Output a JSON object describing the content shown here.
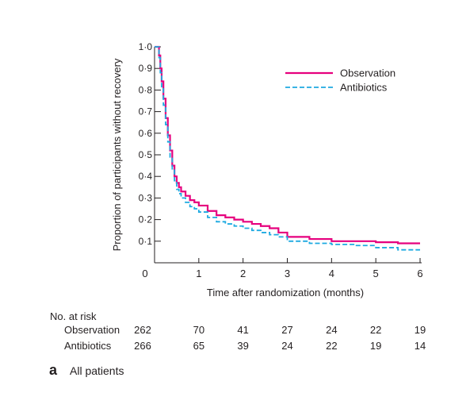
{
  "chart_data": {
    "type": "line",
    "step": true,
    "xlabel": "Time after randomization (months)",
    "ylabel": "Proportion of participants without recovery",
    "xlim": [
      0,
      6
    ],
    "ylim": [
      0,
      1.0
    ],
    "x_ticks": [
      "0",
      "1",
      "2",
      "3",
      "4",
      "5",
      "6"
    ],
    "y_ticks": [
      "0·1",
      "0·2",
      "0·3",
      "0·4",
      "0·5",
      "0·6",
      "0·7",
      "0·8",
      "0·9",
      "1·0"
    ],
    "grid": false,
    "legend_position": "top-right",
    "series": [
      {
        "name": "Observation",
        "color": "#e6007e",
        "dash": "solid",
        "points": [
          [
            0,
            1.0
          ],
          [
            0.08,
            1.0
          ],
          [
            0.1,
            0.96
          ],
          [
            0.13,
            0.9
          ],
          [
            0.16,
            0.84
          ],
          [
            0.2,
            0.76
          ],
          [
            0.25,
            0.67
          ],
          [
            0.3,
            0.59
          ],
          [
            0.35,
            0.52
          ],
          [
            0.4,
            0.45
          ],
          [
            0.45,
            0.4
          ],
          [
            0.5,
            0.37
          ],
          [
            0.55,
            0.35
          ],
          [
            0.6,
            0.33
          ],
          [
            0.7,
            0.31
          ],
          [
            0.8,
            0.29
          ],
          [
            0.9,
            0.28
          ],
          [
            1.0,
            0.265
          ],
          [
            1.2,
            0.24
          ],
          [
            1.4,
            0.22
          ],
          [
            1.6,
            0.21
          ],
          [
            1.8,
            0.2
          ],
          [
            2.0,
            0.19
          ],
          [
            2.2,
            0.18
          ],
          [
            2.4,
            0.17
          ],
          [
            2.6,
            0.16
          ],
          [
            2.8,
            0.14
          ],
          [
            3.0,
            0.12
          ],
          [
            3.5,
            0.11
          ],
          [
            4.0,
            0.1
          ],
          [
            4.5,
            0.1
          ],
          [
            5.0,
            0.095
          ],
          [
            5.5,
            0.09
          ],
          [
            6.0,
            0.09
          ]
        ]
      },
      {
        "name": "Antibiotics",
        "color": "#1eaae1",
        "dash": "dashed",
        "points": [
          [
            0,
            1.0
          ],
          [
            0.08,
            1.0
          ],
          [
            0.1,
            0.95
          ],
          [
            0.13,
            0.88
          ],
          [
            0.16,
            0.81
          ],
          [
            0.2,
            0.73
          ],
          [
            0.25,
            0.64
          ],
          [
            0.3,
            0.56
          ],
          [
            0.35,
            0.49
          ],
          [
            0.4,
            0.43
          ],
          [
            0.45,
            0.38
          ],
          [
            0.5,
            0.34
          ],
          [
            0.55,
            0.32
          ],
          [
            0.6,
            0.3
          ],
          [
            0.7,
            0.28
          ],
          [
            0.8,
            0.26
          ],
          [
            0.9,
            0.25
          ],
          [
            1.0,
            0.235
          ],
          [
            1.2,
            0.21
          ],
          [
            1.4,
            0.19
          ],
          [
            1.6,
            0.18
          ],
          [
            1.8,
            0.17
          ],
          [
            2.0,
            0.16
          ],
          [
            2.2,
            0.15
          ],
          [
            2.4,
            0.14
          ],
          [
            2.6,
            0.13
          ],
          [
            2.8,
            0.12
          ],
          [
            3.0,
            0.1
          ],
          [
            3.5,
            0.09
          ],
          [
            4.0,
            0.085
          ],
          [
            4.5,
            0.08
          ],
          [
            5.0,
            0.07
          ],
          [
            5.5,
            0.06
          ],
          [
            6.0,
            0.06
          ]
        ]
      }
    ]
  },
  "risk_table": {
    "heading": "No. at risk",
    "rows": [
      {
        "label": "Observation",
        "values": [
          "262",
          "70",
          "41",
          "27",
          "24",
          "22",
          "19"
        ]
      },
      {
        "label": "Antibiotics",
        "values": [
          "266",
          "65",
          "39",
          "24",
          "22",
          "19",
          "14"
        ]
      }
    ]
  },
  "panel": {
    "letter": "a",
    "title": "All patients"
  }
}
